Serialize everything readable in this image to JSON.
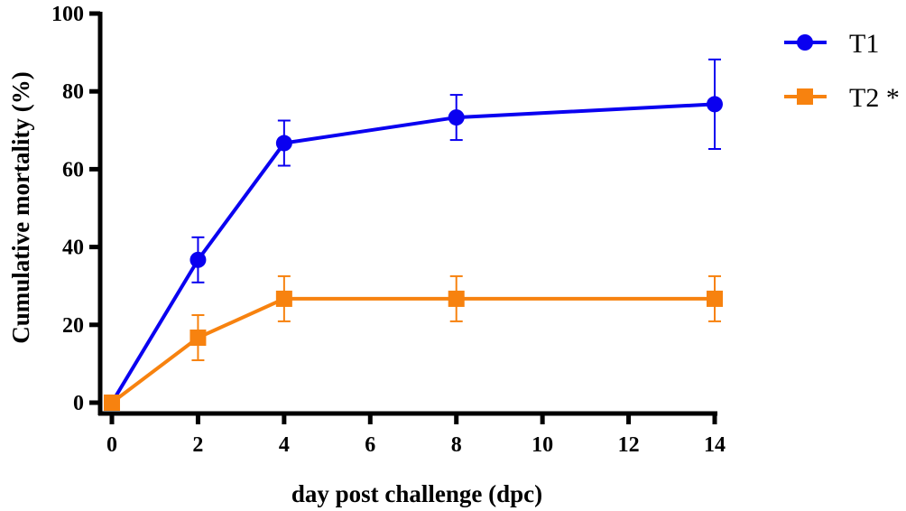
{
  "chart_data": {
    "type": "line",
    "title": "",
    "xlabel": "day post challenge (dpc)",
    "ylabel": "Cumulative mortality (%)",
    "xlim": [
      0,
      14
    ],
    "ylim": [
      0,
      100
    ],
    "xticks": [
      "0",
      "2",
      "4",
      "6",
      "8",
      "10",
      "12",
      "14"
    ],
    "yticks": [
      "0",
      "20",
      "40",
      "60",
      "80",
      "100"
    ],
    "grid": false,
    "legend_position": "top-right",
    "x": [
      0,
      2,
      4,
      8,
      14
    ],
    "series": [
      {
        "name": "T1",
        "color": "#0a00f0",
        "marker": "circle",
        "values": [
          0,
          36.7,
          66.7,
          73.3,
          76.7
        ],
        "errors": [
          0,
          5.8,
          5.8,
          5.8,
          11.5
        ]
      },
      {
        "name": "T2 *",
        "color": "#f7820f",
        "marker": "square",
        "values": [
          0,
          16.7,
          26.7,
          26.7,
          26.7
        ],
        "errors": [
          0,
          5.8,
          5.8,
          5.8,
          5.8
        ]
      }
    ]
  }
}
